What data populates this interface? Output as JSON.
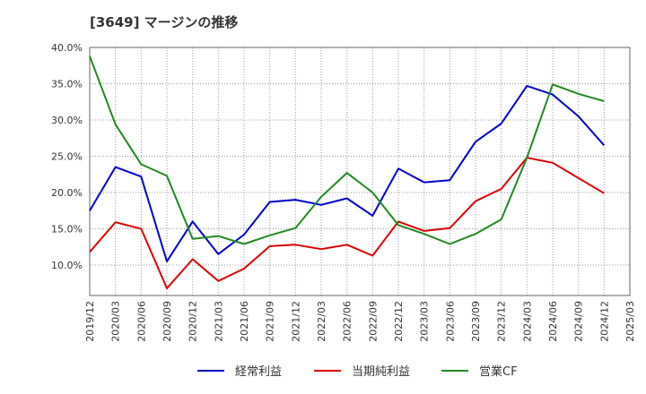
{
  "chart_data": {
    "type": "line",
    "title": "[3649]  マージンの推移",
    "x": [
      "2019/12",
      "2020/03",
      "2020/06",
      "2020/09",
      "2020/12",
      "2021/03",
      "2021/06",
      "2021/09",
      "2021/12",
      "2022/03",
      "2022/06",
      "2022/09",
      "2022/12",
      "2023/03",
      "2023/06",
      "2023/09",
      "2023/12",
      "2024/03",
      "2024/06",
      "2024/09",
      "2024/12",
      "2025/03"
    ],
    "ylim": [
      5.8,
      40.0
    ],
    "yticks": [
      "40.0%",
      "35.0%",
      "30.0%",
      "25.0%",
      "20.0%",
      "15.0%",
      "10.0%"
    ],
    "ytick_values": [
      40,
      35,
      30,
      25,
      20,
      15,
      10
    ],
    "grid": true,
    "legend_position": "bottom",
    "series": [
      {
        "name": "経常利益",
        "color": "#0000cc",
        "values": [
          17.5,
          23.5,
          22.2,
          10.5,
          16.0,
          11.5,
          14.2,
          18.7,
          19.0,
          18.3,
          19.2,
          16.8,
          23.3,
          21.4,
          21.7,
          27.0,
          29.5,
          34.7,
          33.5,
          30.5,
          26.5,
          null
        ]
      },
      {
        "name": "当期純利益",
        "color": "#dd0000",
        "values": [
          11.8,
          15.9,
          15.0,
          6.8,
          10.8,
          7.8,
          9.5,
          12.6,
          12.8,
          12.2,
          12.8,
          11.3,
          16.0,
          14.7,
          15.1,
          18.8,
          20.5,
          24.8,
          24.1,
          22.0,
          19.9,
          null
        ]
      },
      {
        "name": "営業CF",
        "color": "#228822",
        "values": [
          38.8,
          29.4,
          23.9,
          22.3,
          13.6,
          14.0,
          12.9,
          14.1,
          15.1,
          19.4,
          22.7,
          20.0,
          15.5,
          14.3,
          12.9,
          14.3,
          16.3,
          24.8,
          34.9,
          33.6,
          32.6,
          null
        ]
      }
    ]
  }
}
